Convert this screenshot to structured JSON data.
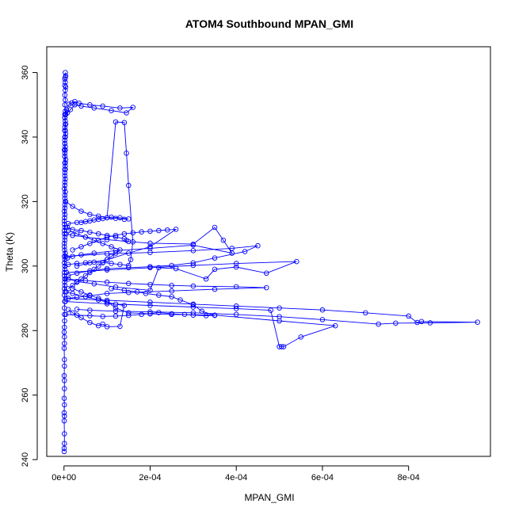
{
  "chart_data": {
    "type": "line",
    "title": "ATOM4 Southbound MPAN_GMI",
    "xlabel": "MPAN_GMI",
    "ylabel": "Theta (K)",
    "xlim": [
      -4e-05,
      0.00099
    ],
    "ylim": [
      241,
      368
    ],
    "xticks": [
      {
        "value": 0,
        "label": "0e+00"
      },
      {
        "value": 0.0002,
        "label": "2e-04"
      },
      {
        "value": 0.0004,
        "label": "4e-04"
      },
      {
        "value": 0.0006,
        "label": "6e-04"
      },
      {
        "value": 0.0008,
        "label": "8e-04"
      }
    ],
    "yticks": [
      {
        "value": 240,
        "label": "240"
      },
      {
        "value": 260,
        "label": "260"
      },
      {
        "value": 280,
        "label": "280"
      },
      {
        "value": 300,
        "label": "300"
      },
      {
        "value": 320,
        "label": "320"
      },
      {
        "value": 340,
        "label": "340"
      },
      {
        "value": 360,
        "label": "360"
      }
    ],
    "color": "#0000ff",
    "marker": "open-circle",
    "grid": false,
    "series": [
      {
        "x": [
          5e-07,
          5e-07,
          1e-06,
          1e-06,
          5e-07,
          1e-06,
          5e-07,
          1e-06,
          5e-07,
          1e-06,
          1e-06,
          5e-07,
          1e-06,
          1e-06,
          5e-07,
          1e-06,
          1e-06,
          5e-07,
          1e-06,
          1.5e-06,
          1e-06,
          1e-06,
          2e-06,
          1e-06,
          1e-06,
          1.5e-06,
          1e-06,
          2e-06,
          1e-06,
          1e-06,
          1.5e-06,
          1e-06,
          2e-06,
          1e-06,
          1e-06,
          1.5e-06,
          1e-06,
          2e-06,
          2e-06,
          3e-06,
          2e-06,
          3e-06,
          2e-06,
          3e-06,
          4e-06,
          2e-06,
          3e-06,
          2e-06,
          4e-06,
          2e-06,
          3e-06,
          3e-06,
          2e-06,
          4e-06,
          3e-06,
          2e-06,
          2e-06,
          1e-06,
          2e-06,
          2e-06,
          3e-06,
          2e-06,
          2e-06,
          1e-06,
          2e-06,
          3e-06,
          2e-06,
          2e-06,
          1e-06,
          2e-06,
          1e-06,
          2e-06,
          1e-06,
          3e-06,
          2e-06,
          2e-06,
          1e-06,
          2e-06,
          2e-06,
          2e-06
        ],
        "y": [
          242.5,
          243.5,
          245,
          248,
          252,
          253.5,
          254.5,
          257,
          259,
          262,
          264.5,
          266,
          269,
          271,
          274.5,
          276,
          278,
          279.5,
          281,
          283,
          285,
          287,
          289,
          291,
          293,
          295,
          297,
          299,
          301,
          303,
          305,
          307,
          309,
          311,
          313,
          315,
          317,
          319,
          321,
          323,
          325,
          327,
          329,
          331,
          333,
          335,
          337,
          339,
          341,
          343,
          345,
          347,
          346,
          344,
          342,
          340,
          338,
          336,
          334,
          332,
          330,
          328,
          326,
          324,
          322,
          320,
          318,
          316,
          314,
          312,
          310,
          308,
          306,
          304,
          302,
          300,
          298,
          296,
          294,
          292
        ]
      },
      {
        "x": [
          2e-06,
          6e-06,
          1.2e-05,
          1.8e-05,
          2.5e-05,
          3.5e-05,
          6e-05,
          9e-05,
          0.00013,
          0.00016,
          0.000145,
          0.00011,
          7e-05,
          4e-05,
          2.5e-05,
          1.5e-05,
          8e-06,
          4e-06
        ],
        "y": [
          347,
          348.5,
          350.2,
          350.6,
          351,
          350.5,
          350,
          349.6,
          349,
          349.2,
          347.5,
          348.2,
          349,
          349.6,
          350,
          348.5,
          347.5,
          347
        ]
      },
      {
        "x": [
          3e-06,
          4e-06,
          3e-06,
          2e-06,
          3e-06,
          2e-06,
          4e-06,
          3e-06,
          2e-06,
          3e-06,
          2e-06,
          3e-06,
          2e-06,
          3e-06,
          2e-06,
          3e-06,
          2e-06,
          3e-06,
          2e-06,
          3e-06,
          2e-06
        ],
        "y": [
          360,
          359,
          358.5,
          358,
          357,
          356,
          355.5,
          354.5,
          353,
          351.5,
          350,
          348,
          346,
          344,
          342,
          340,
          338,
          336,
          334,
          332,
          330
        ]
      },
      {
        "x": [
          4e-06,
          2e-05,
          4e-05,
          6e-05,
          8e-05,
          0.0001,
          0.00012,
          0.00014,
          0.00015,
          0.00013,
          0.00011,
          9e-05,
          7e-05,
          5e-05,
          3e-05,
          1e-05,
          8e-06,
          2e-05,
          4e-05,
          6e-05,
          8e-05,
          0.0001,
          0.00012,
          0.00014,
          0.000145
        ],
        "y": [
          320,
          318.5,
          317,
          316,
          315.5,
          315,
          314.8,
          314.5,
          314.6,
          315,
          315.2,
          314.7,
          314.3,
          313.8,
          313.5,
          313.2,
          312,
          311.3,
          311,
          310.5,
          310,
          309.5,
          309,
          308.5,
          308
        ]
      },
      {
        "x": [
          5e-06,
          2e-05,
          5e-05,
          0.0001,
          0.00015,
          0.0002,
          0.0003,
          0.00035,
          0.00037,
          0.00039,
          0.0003,
          0.0002,
          0.00012,
          7e-05,
          4e-05,
          2e-05,
          8e-06
        ],
        "y": [
          310,
          309.5,
          309,
          308.2,
          307.6,
          307.1,
          306.8,
          312,
          308,
          304,
          306.5,
          305.5,
          304.8,
          304,
          303.5,
          303,
          302.5
        ]
      },
      {
        "x": [
          4e-06,
          0.0001,
          0.0002,
          0.0003,
          0.00039,
          0.00045,
          0.00042,
          0.00035,
          0.0003,
          0.00025,
          0.0002,
          0.00015,
          0.0001,
          6e-05,
          3e-05,
          1e-05
        ],
        "y": [
          303,
          303.8,
          304.2,
          304.8,
          305.5,
          306.3,
          304.5,
          302.5,
          301,
          300.2,
          299.8,
          299.5,
          299.2,
          298.5,
          297.8,
          297
        ]
      },
      {
        "x": [
          6e-06,
          0.0001,
          0.0002,
          0.0003,
          0.0004,
          0.00054,
          0.00047,
          0.0004,
          0.00035,
          0.00033,
          0.00026,
          0.00022,
          0.0002,
          0.00012,
          7e-05,
          3e-05,
          1e-05
        ],
        "y": [
          298,
          298.8,
          299.5,
          300.2,
          300.8,
          301.4,
          297.8,
          299.7,
          299,
          296,
          299.2,
          299.5,
          292.5,
          293.5,
          294.5,
          295.2,
          296
        ]
      },
      {
        "x": [
          3e-06,
          5e-05,
          0.0001,
          0.00015,
          0.0002,
          0.00025,
          0.0003,
          0.0004,
          0.00047,
          0.00035,
          0.00025,
          0.00015,
          0.0001,
          6e-05,
          3e-05,
          1e-05
        ],
        "y": [
          296,
          295.5,
          295,
          294.6,
          294.3,
          294,
          293.8,
          293.6,
          293.3,
          292.8,
          292.3,
          291.8,
          291.5,
          290.8,
          290.3,
          290
        ]
      },
      {
        "x": [
          4e-06,
          0.0001,
          0.0002,
          0.0003,
          0.0004,
          0.0005,
          0.0006,
          0.0007,
          0.0008,
          0.00082,
          0.00083,
          0.00096,
          0.00085,
          0.00077,
          0.00073,
          0.0006,
          0.0005,
          0.0004,
          0.0003,
          0.0002,
          0.00012,
          6e-05,
          3e-05
        ],
        "y": [
          290,
          289.4,
          288.8,
          288.2,
          287.6,
          287,
          286.4,
          285.5,
          284.5,
          282.5,
          282.8,
          282.6,
          282.4,
          282.3,
          282,
          283.4,
          284.3,
          285,
          285.5,
          285.8,
          286,
          286.3,
          286.6
        ]
      },
      {
        "x": [
          3e-06,
          0.0001,
          0.0002,
          0.0003,
          0.0004,
          0.00048,
          0.0005,
          0.000505,
          0.00051,
          0.00055,
          0.00063,
          0.0005,
          0.00035,
          0.00025,
          0.0002,
          0.00015,
          0.00012,
          0.0001,
          8e-05,
          6e-05,
          4e-05,
          2e-05
        ],
        "y": [
          289,
          288.3,
          287.8,
          287.3,
          286.8,
          286.3,
          275,
          275,
          275,
          278,
          281.5,
          283,
          284.8,
          285,
          285.2,
          285.5,
          287,
          289,
          290,
          291,
          292,
          293
        ]
      },
      {
        "x": [
          5e-06,
          2e-05,
          5e-05,
          8e-05,
          0.0001,
          0.00012,
          0.00014,
          0.00013,
          0.0001,
          9e-05,
          8e-05,
          6e-05,
          4e-05,
          2e-05,
          1e-05
        ],
        "y": [
          292,
          291.5,
          290.5,
          289.5,
          288.8,
          288.2,
          287.8,
          281.3,
          281.2,
          282,
          281.5,
          282.5,
          284,
          285.5,
          286.5
        ]
      },
      {
        "x": [
          2e-06,
          1e-05,
          3e-05,
          5e-05,
          7e-05,
          9e-05,
          0.00011,
          0.00013,
          0.00015,
          0.000155,
          0.00016,
          0.00015,
          0.000145,
          0.00014,
          0.00012,
          0.0001,
          8e-05,
          6e-05,
          4e-05
        ],
        "y": [
          300,
          300.5,
          300.8,
          301,
          301.2,
          301.1,
          300.8,
          300.5,
          300.2,
          302,
          307.5,
          325,
          335,
          344.5,
          344.7,
          315,
          314.5,
          314,
          313.5
        ]
      },
      {
        "x": [
          4e-06,
          3e-05,
          6e-05,
          9e-05,
          0.00012,
          0.00015,
          0.00018,
          0.0002,
          0.00022,
          0.00025,
          0.00028,
          0.0003,
          0.00033,
          0.00035,
          0.00032,
          0.0003,
          0.00027,
          0.00025,
          0.00022,
          0.00019,
          0.00017,
          0.00014,
          0.00011
        ],
        "y": [
          285,
          284.8,
          284.6,
          284.4,
          284.5,
          284.7,
          285,
          285.3,
          285.6,
          285.2,
          285,
          284.8,
          284.6,
          284.7,
          286,
          288,
          289.5,
          290.5,
          291,
          291.5,
          292,
          292.5,
          293
        ]
      },
      {
        "x": [
          2e-05,
          4e-05,
          6e-05,
          8e-05,
          0.0001,
          0.00012,
          0.00014,
          0.00016,
          0.00018,
          0.0002,
          0.00022,
          0.00024,
          0.00026,
          0.0002,
          0.00015,
          0.0001,
          6e-05,
          3e-05
        ],
        "y": [
          305,
          306,
          307,
          308,
          309,
          309.5,
          310,
          310.3,
          310.6,
          310.8,
          311,
          311.2,
          311.4,
          306,
          304,
          302,
          301,
          300
        ]
      },
      {
        "x": [
          1e-05,
          2e-05,
          3e-05,
          4e-05,
          5e-05,
          6e-05,
          7e-05,
          8e-05,
          9e-05,
          0.0001,
          0.00011,
          0.00012,
          0.00013,
          0.00011,
          9e-05,
          7e-05,
          5e-05,
          3e-05,
          1e-05
        ],
        "y": [
          293,
          294,
          295,
          296,
          297,
          298,
          299,
          300,
          301,
          302,
          303,
          304,
          305,
          306,
          307,
          308,
          309,
          310,
          311
        ]
      }
    ]
  }
}
